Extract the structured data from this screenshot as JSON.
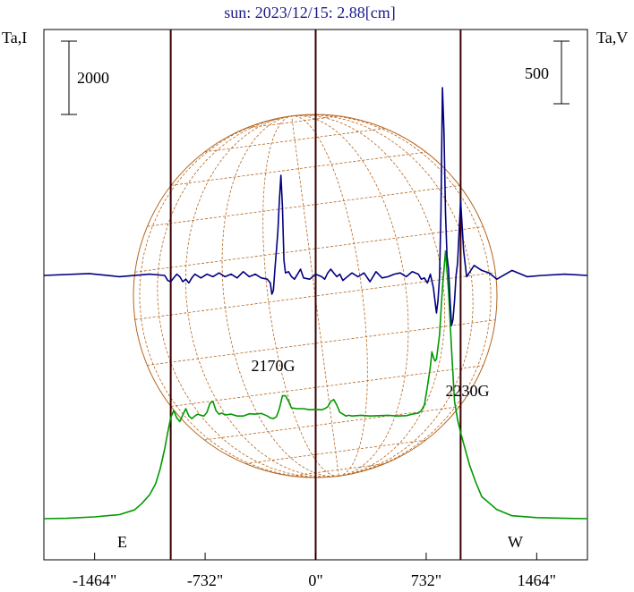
{
  "chart_data": {
    "type": "line",
    "title": "sun: 2023/12/15: 2.88[cm]",
    "ylabel_left": "Ta,I",
    "ylabel_right": "Ta,V",
    "xlim": [
      -1800,
      1800
    ],
    "x_ticks": [
      -1464,
      -732,
      0,
      732,
      1464
    ],
    "x_tick_labels": [
      "-1464\"",
      "-732\"",
      "0\"",
      "732\"",
      "1464\""
    ],
    "scale_bar_I": {
      "label": "2000",
      "value": 2000
    },
    "scale_bar_V": {
      "label": "500",
      "value": 500
    },
    "limb_lines_x": [
      -960,
      0,
      960
    ],
    "limb_labels": [
      "E",
      "W"
    ],
    "annotations": [
      {
        "text": "2170G",
        "x": -230
      },
      {
        "text": "2230G",
        "x": 870
      }
    ],
    "colors": {
      "I": "#009900",
      "V": "#000080",
      "grid": "#b5651d",
      "axis": "#000000",
      "limb": "#3a0000",
      "title": "#1a1a8c"
    },
    "series": [
      {
        "key": "I",
        "x": [
          -1800,
          -1650,
          -1464,
          -1300,
          -1200,
          -1150,
          -1100,
          -1060,
          -1030,
          -1000,
          -980,
          -960,
          -940,
          -920,
          -900,
          -880,
          -860,
          -840,
          -820,
          -800,
          -780,
          -760,
          -740,
          -720,
          -700,
          -680,
          -660,
          -640,
          -620,
          -600,
          -560,
          -520,
          -480,
          -440,
          -400,
          -360,
          -320,
          -300,
          -280,
          -260,
          -240,
          -220,
          -200,
          -180,
          -160,
          -120,
          -80,
          -40,
          0,
          40,
          60,
          80,
          100,
          120,
          140,
          160,
          180,
          200,
          220,
          240,
          300,
          360,
          420,
          480,
          540,
          600,
          640,
          680,
          700,
          720,
          740,
          760,
          770,
          780,
          790,
          800,
          820,
          840,
          860,
          880,
          900,
          920,
          940,
          960,
          980,
          1000,
          1020,
          1060,
          1100,
          1200,
          1300,
          1464,
          1650,
          1800
        ],
        "y": [
          0,
          10,
          50,
          110,
          240,
          420,
          650,
          950,
          1350,
          1900,
          2350,
          2750,
          2950,
          2750,
          2650,
          2830,
          3000,
          2800,
          2730,
          2800,
          2850,
          2820,
          2800,
          2900,
          3150,
          3200,
          2950,
          2850,
          2880,
          2830,
          2850,
          2800,
          2800,
          2860,
          2850,
          2870,
          2800,
          2750,
          2730,
          2780,
          3000,
          3350,
          3350,
          3200,
          3020,
          3000,
          3000,
          2970,
          2980,
          2970,
          3000,
          3050,
          3200,
          3250,
          3100,
          2900,
          2850,
          2800,
          2820,
          2800,
          2820,
          2800,
          2810,
          2820,
          2800,
          2810,
          2850,
          2880,
          2950,
          3100,
          3600,
          4150,
          4550,
          4400,
          4300,
          4350,
          5000,
          6300,
          7300,
          6200,
          4600,
          3200,
          2700,
          2350,
          2050,
          1750,
          1450,
          1000,
          600,
          250,
          80,
          30,
          10,
          0
        ]
      },
      {
        "key": "V",
        "x": [
          -1800,
          -1500,
          -1300,
          -1100,
          -1000,
          -980,
          -960,
          -940,
          -920,
          -900,
          -880,
          -860,
          -840,
          -820,
          -800,
          -760,
          -720,
          -680,
          -640,
          -600,
          -560,
          -520,
          -480,
          -440,
          -400,
          -360,
          -320,
          -300,
          -290,
          -280,
          -270,
          -260,
          -250,
          -240,
          -230,
          -220,
          -210,
          -200,
          -180,
          -160,
          -140,
          -120,
          -100,
          -80,
          -40,
          0,
          40,
          60,
          80,
          100,
          120,
          140,
          160,
          180,
          200,
          240,
          280,
          320,
          360,
          400,
          440,
          480,
          520,
          560,
          600,
          640,
          680,
          700,
          720,
          740,
          760,
          780,
          800,
          810,
          820,
          830,
          840,
          850,
          860,
          870,
          880,
          890,
          900,
          910,
          920,
          930,
          940,
          950,
          960,
          980,
          1000,
          1050,
          1100,
          1150,
          1200,
          1300,
          1400,
          1500,
          1650,
          1800
        ],
        "y": [
          0,
          -15,
          10,
          -10,
          0,
          40,
          50,
          20,
          -10,
          10,
          50,
          30,
          60,
          20,
          -10,
          20,
          -10,
          10,
          -20,
          10,
          -10,
          20,
          -30,
          10,
          -10,
          20,
          30,
          60,
          150,
          120,
          -50,
          -200,
          -350,
          -600,
          -800,
          -550,
          -120,
          -20,
          -30,
          10,
          30,
          -10,
          -50,
          20,
          30,
          -10,
          10,
          30,
          -20,
          -50,
          -20,
          10,
          -10,
          40,
          20,
          -20,
          10,
          -20,
          50,
          -30,
          20,
          10,
          -10,
          -20,
          10,
          -30,
          -10,
          30,
          20,
          60,
          -10,
          100,
          300,
          200,
          20,
          -500,
          -1500,
          -1150,
          -500,
          -150,
          -50,
          200,
          400,
          350,
          200,
          0,
          -100,
          -350,
          -600,
          -200,
          10,
          -80,
          -40,
          -20,
          30,
          -40,
          10,
          0,
          -10,
          0
        ]
      }
    ]
  }
}
